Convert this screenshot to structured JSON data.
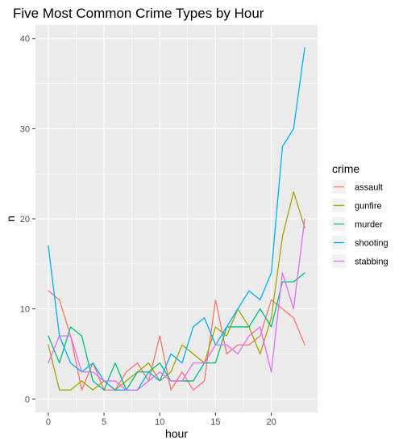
{
  "chart_data": {
    "type": "line",
    "title": "Five Most Common Crime Types by Hour",
    "xlabel": "hour",
    "ylabel": "n",
    "x": [
      0,
      1,
      2,
      3,
      4,
      5,
      6,
      7,
      8,
      9,
      10,
      11,
      12,
      13,
      14,
      15,
      16,
      17,
      18,
      19,
      20,
      21,
      22,
      23
    ],
    "xlim": [
      -1.15,
      24.15
    ],
    "ylim": [
      -1.5,
      41.5
    ],
    "x_ticks": [
      0,
      5,
      10,
      15,
      20
    ],
    "y_ticks": [
      0,
      10,
      20,
      30,
      40
    ],
    "grid": true,
    "legend": {
      "title": "crime",
      "position": "right"
    },
    "series": [
      {
        "name": "assault",
        "color": "#F8766D",
        "values": [
          12,
          11,
          7,
          1,
          4,
          1,
          1,
          3,
          4,
          2,
          7,
          1,
          3,
          1,
          2,
          11,
          5,
          6,
          6,
          7,
          11,
          10,
          9,
          6
        ]
      },
      {
        "name": "gunfire",
        "color": "#A3A500",
        "values": [
          6,
          1,
          1,
          2,
          1,
          2,
          1,
          2,
          3,
          4,
          2,
          3,
          6,
          5,
          4,
          8,
          7,
          10,
          8,
          5,
          9,
          18,
          23,
          19
        ]
      },
      {
        "name": "murder",
        "color": "#00BF7D",
        "values": [
          7,
          4,
          8,
          7,
          2,
          1,
          4,
          1,
          3,
          3,
          4,
          2,
          2,
          2,
          4,
          4,
          8,
          8,
          8,
          10,
          8,
          13,
          13,
          14
        ]
      },
      {
        "name": "shooting",
        "color": "#00B0F6",
        "values": [
          17,
          7,
          4,
          3,
          4,
          2,
          1,
          1,
          1,
          3,
          2,
          5,
          4,
          8,
          9,
          6,
          8,
          10,
          12,
          11,
          14,
          28,
          30,
          39
        ]
      },
      {
        "name": "stabbing",
        "color": "#E76BF3",
        "values": [
          4,
          7,
          7,
          3,
          3,
          2,
          2,
          1,
          1,
          2,
          3,
          2,
          2,
          4,
          4,
          6,
          6,
          5,
          7,
          8,
          3,
          14,
          10,
          20
        ]
      }
    ]
  }
}
